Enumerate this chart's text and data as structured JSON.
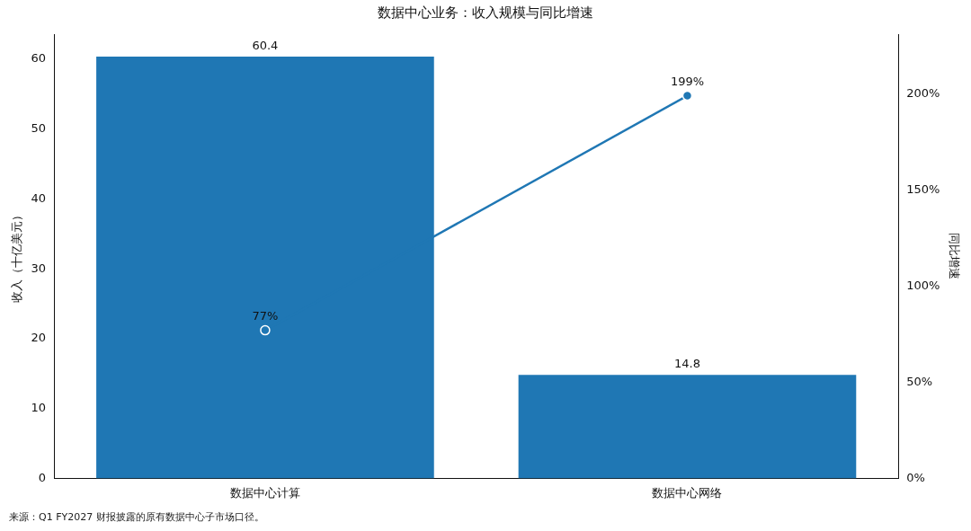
{
  "chart_data": {
    "type": "bar",
    "title": "数据中心业务：收入规模与同比增速",
    "ylabel": "收入（十亿美元）",
    "y2label": "同比增速",
    "categories": [
      "数据中心计算",
      "数据中心网络"
    ],
    "series": [
      {
        "color": "#1f77b4",
        "values": [
          60.4,
          14.8
        ],
        "value_labels": [
          "60.4",
          "14.8"
        ]
      },
      {
        "type": "line",
        "axis": "y2",
        "color": "#1f77b4",
        "values": [
          77,
          199
        ],
        "value_labels": [
          "77%",
          "199%"
        ]
      }
    ],
    "ylim": [
      0,
      63.6
    ],
    "yticks": [
      0,
      10,
      20,
      30,
      40,
      50,
      60
    ],
    "y2lim": [
      0,
      231
    ],
    "y2ticks": [
      {
        "value": 0,
        "label": "0%"
      },
      {
        "value": 50,
        "label": "50%"
      },
      {
        "value": 100,
        "label": "100%"
      },
      {
        "value": 150,
        "label": "150%"
      },
      {
        "value": 200,
        "label": "200%"
      }
    ],
    "marker": "circle",
    "line_style": "solid",
    "grid": false,
    "legend": false,
    "annotations": [
      "来源：Q1 FY2027 财报披露的原有数据中心子市场口径。"
    ]
  }
}
